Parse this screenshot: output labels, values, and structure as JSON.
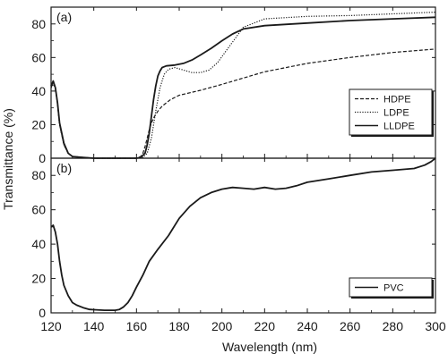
{
  "chart_data": [
    {
      "type": "line",
      "panel_label": "(a)",
      "ylim": [
        0,
        90
      ],
      "xlim": [
        120,
        300
      ],
      "yticks": [
        "0",
        "20",
        "40",
        "60",
        "80"
      ],
      "legend_position": "right",
      "series": [
        {
          "name": "HDPE",
          "line_style": "dashed",
          "x": [
            120,
            121,
            122,
            123,
            124,
            126,
            128,
            130,
            135,
            140,
            145,
            150,
            155,
            160,
            162,
            163,
            164,
            165,
            166,
            167,
            168,
            169,
            170,
            172,
            174,
            176,
            180,
            190,
            200,
            220,
            240,
            260,
            280,
            300
          ],
          "y": [
            42,
            45,
            42,
            32,
            20,
            8,
            3,
            1,
            0.5,
            0,
            0,
            0,
            0,
            0,
            1,
            3,
            7,
            12,
            17,
            21,
            24,
            26,
            28,
            31,
            33,
            35,
            37.5,
            40.5,
            44,
            51.5,
            56.5,
            60,
            63,
            65
          ]
        },
        {
          "name": "LDPE",
          "line_style": "dotted",
          "x": [
            120,
            121,
            122,
            123,
            124,
            126,
            128,
            130,
            135,
            140,
            145,
            150,
            155,
            160,
            163,
            165,
            167,
            169,
            171,
            173,
            175,
            178,
            182,
            186,
            190,
            194,
            198,
            202,
            206,
            210,
            220,
            240,
            260,
            280,
            300
          ],
          "y": [
            42,
            44,
            42,
            32,
            20,
            8,
            3,
            1,
            0.5,
            0,
            0,
            0,
            0,
            0,
            0.5,
            3,
            12,
            28,
            42,
            50,
            53,
            54,
            52.5,
            51,
            51,
            52.5,
            57,
            64,
            71,
            78,
            83,
            84.5,
            85,
            86,
            87
          ]
        },
        {
          "name": "LLDPE",
          "line_style": "solid",
          "x": [
            120,
            121,
            122,
            123,
            124,
            126,
            128,
            130,
            135,
            140,
            145,
            150,
            155,
            160,
            162,
            164,
            165,
            166,
            167,
            168,
            169,
            170,
            171,
            172,
            174,
            178,
            182,
            186,
            190,
            195,
            200,
            205,
            210,
            220,
            240,
            260,
            280,
            300
          ],
          "y": [
            43,
            46,
            42,
            33,
            21,
            9,
            3,
            1,
            0.5,
            0,
            0,
            0,
            0,
            0,
            0.5,
            3,
            8,
            15,
            25,
            35,
            43,
            49,
            52,
            54,
            55,
            55.5,
            56.5,
            58.5,
            61.5,
            65.5,
            70,
            74,
            77,
            79,
            80.5,
            82,
            83,
            84
          ]
        }
      ]
    },
    {
      "type": "line",
      "panel_label": "(b)",
      "ylim": [
        0,
        90
      ],
      "xlim": [
        120,
        300
      ],
      "yticks": [
        "0",
        "20",
        "40",
        "60",
        "80"
      ],
      "legend_position": "bottom-right",
      "series": [
        {
          "name": "PVC",
          "line_style": "solid",
          "x": [
            120,
            121,
            122,
            123,
            124,
            125,
            126,
            128,
            130,
            132,
            135,
            138,
            140,
            145,
            150,
            152,
            154,
            156,
            158,
            160,
            163,
            166,
            170,
            175,
            180,
            185,
            190,
            195,
            200,
            205,
            210,
            215,
            220,
            225,
            230,
            235,
            240,
            250,
            260,
            270,
            280,
            290,
            295,
            298,
            300
          ],
          "y": [
            50,
            51,
            47,
            40,
            30,
            22,
            16,
            10,
            6,
            4.5,
            3,
            2,
            1.8,
            1.5,
            1.5,
            2,
            3.5,
            6,
            10,
            15,
            22,
            30,
            37,
            45,
            55,
            62,
            67,
            70,
            72,
            73,
            72.5,
            72,
            73,
            72,
            72.5,
            74,
            76,
            78,
            80,
            82,
            83,
            84,
            86,
            88,
            90
          ]
        }
      ]
    }
  ],
  "x_axis": {
    "label": "Wavelength (nm)",
    "ticks": [
      "120",
      "140",
      "160",
      "180",
      "200",
      "220",
      "240",
      "260",
      "280",
      "300"
    ]
  },
  "y_axis": {
    "label": "Transmittance (%)"
  }
}
